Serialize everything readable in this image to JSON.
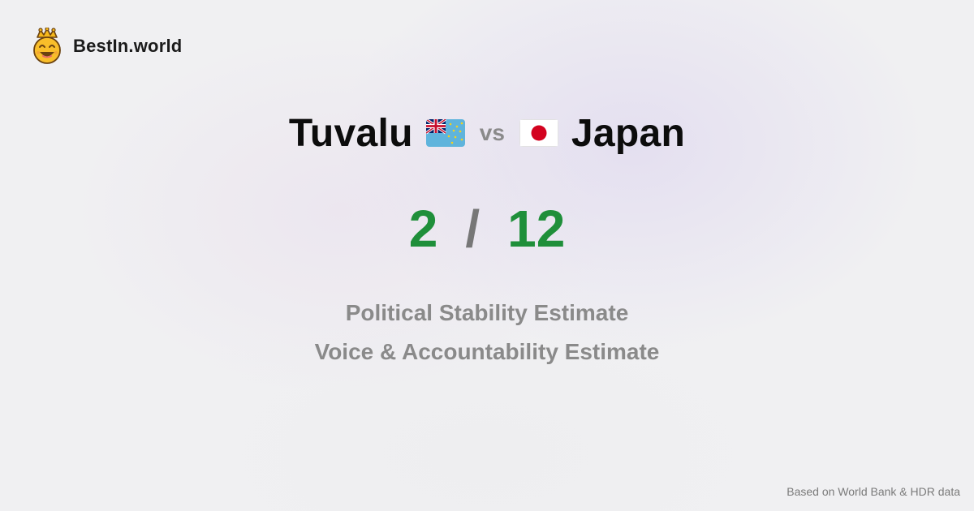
{
  "brand": {
    "name": "BestIn.world",
    "logo_icon": "crowned-smiley-icon"
  },
  "comparison": {
    "country_a": "Tuvalu",
    "country_a_flag": "tuvalu-flag-icon",
    "vs_label": "vs",
    "country_b": "Japan",
    "country_b_flag": "japan-flag-icon"
  },
  "scores": {
    "a": "2",
    "separator": "/",
    "b": "12"
  },
  "metrics": [
    "Political Stability Estimate",
    "Voice & Accountability Estimate"
  ],
  "footer": {
    "source_note": "Based on World Bank & HDR data"
  },
  "colors": {
    "score_green": "#1f8f3a",
    "muted_text": "#8a8a8a",
    "title_text": "#0c0c0c"
  }
}
